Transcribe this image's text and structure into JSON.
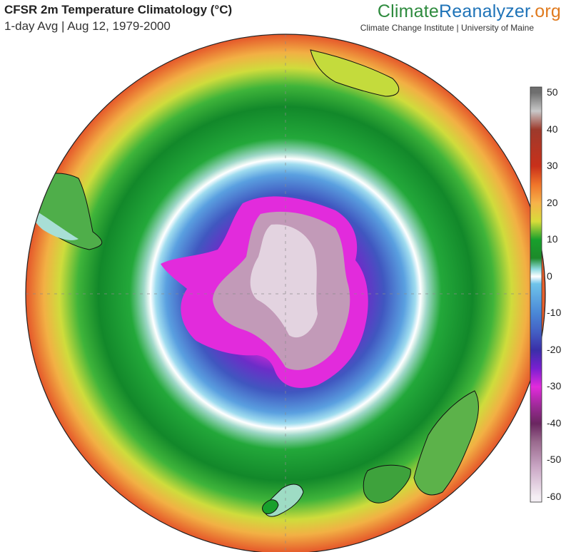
{
  "header": {
    "title": "CFSR 2m Temperature Climatology (°C)",
    "subtitle": "1-day Avg | Aug 12, 1979-2000"
  },
  "brand": {
    "part1": "Climate",
    "part2": "Reanalyzer",
    "part3": ".org",
    "tagline": "Climate Change Institute | University of Maine"
  },
  "colorbar": {
    "labels": [
      "50",
      "40",
      "30",
      "20",
      "10",
      "0",
      "-10",
      "-20",
      "-30",
      "-40",
      "-50",
      "-60"
    ],
    "stops": [
      {
        "v": 50,
        "c": "#6f6f6f"
      },
      {
        "v": 45,
        "c": "#c8c8c8"
      },
      {
        "v": 40,
        "c": "#9d3a2c"
      },
      {
        "v": 30,
        "c": "#c8301a"
      },
      {
        "v": 25,
        "c": "#f0752a"
      },
      {
        "v": 20,
        "c": "#f6b24a"
      },
      {
        "v": 15,
        "c": "#d8dc3a"
      },
      {
        "v": 10,
        "c": "#18a02c"
      },
      {
        "v": 5,
        "c": "#1d8a2a"
      },
      {
        "v": 2,
        "c": "#8fdbe0"
      },
      {
        "v": 0,
        "c": "#ffffff"
      },
      {
        "v": -2,
        "c": "#6fc4ea"
      },
      {
        "v": -10,
        "c": "#4a87d6"
      },
      {
        "v": -15,
        "c": "#4460c4"
      },
      {
        "v": -20,
        "c": "#3a2fa8"
      },
      {
        "v": -25,
        "c": "#7a1fd0"
      },
      {
        "v": -30,
        "c": "#e22bdc"
      },
      {
        "v": -35,
        "c": "#a02a9a"
      },
      {
        "v": -40,
        "c": "#6a2660"
      },
      {
        "v": -45,
        "c": "#9a6a8e"
      },
      {
        "v": -52,
        "c": "#cba8c6"
      },
      {
        "v": -60,
        "c": "#f4eef4"
      }
    ]
  }
}
